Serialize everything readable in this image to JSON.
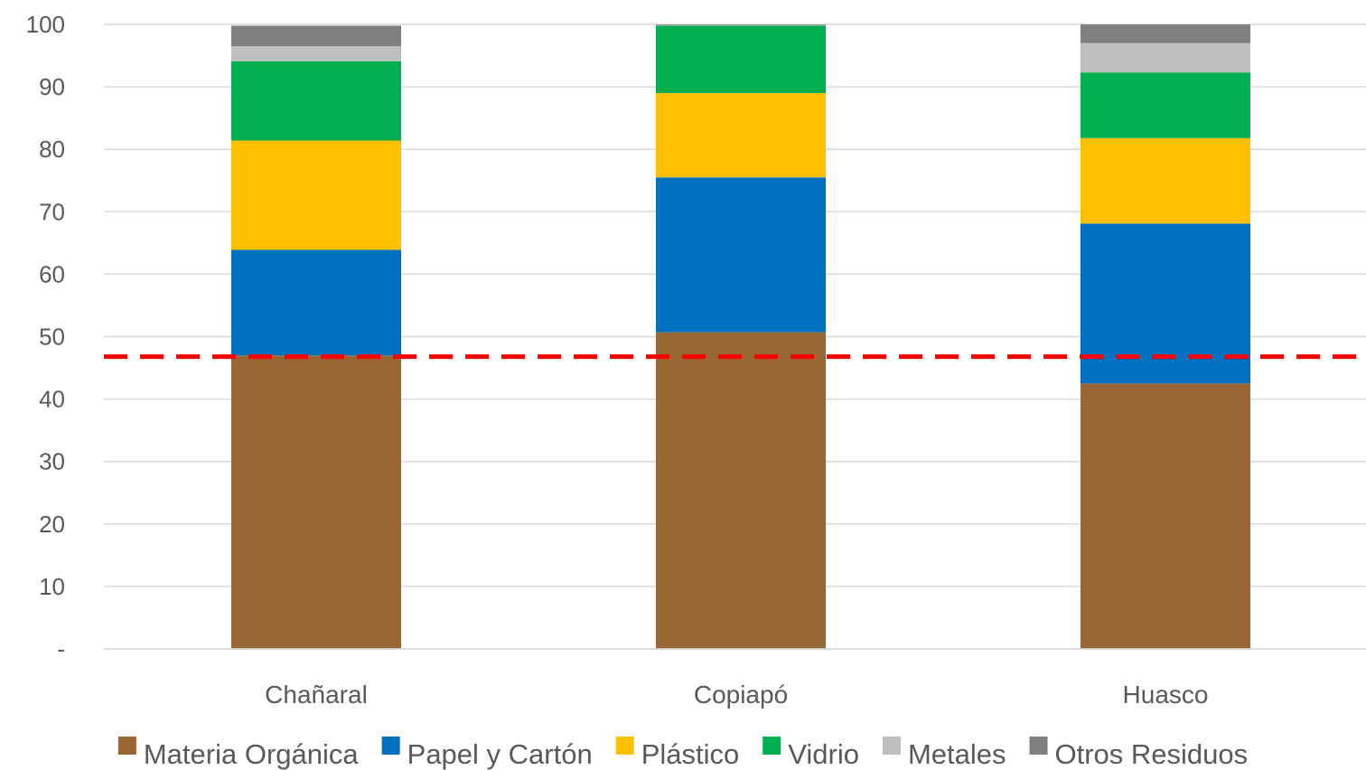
{
  "chart_data": {
    "type": "bar",
    "stacked": true,
    "title": "",
    "xlabel": "",
    "ylabel": "",
    "ylim": [
      0,
      100
    ],
    "yticks": [
      0,
      10,
      20,
      30,
      40,
      50,
      60,
      70,
      80,
      90,
      100
    ],
    "ytick_labels": [
      "-",
      "10",
      "20",
      "30",
      "40",
      "50",
      "60",
      "70",
      "80",
      "90",
      "100"
    ],
    "grid": true,
    "legend_position": "bottom",
    "categories": [
      "Chañaral",
      "Copiapó",
      "Huasco"
    ],
    "series": [
      {
        "name": "Materia Orgánica",
        "color": "#996633",
        "values": [
          47.0,
          50.7,
          42.5
        ]
      },
      {
        "name": "Papel y Cartón",
        "color": "#0070C0",
        "values": [
          16.9,
          24.8,
          25.6
        ]
      },
      {
        "name": "Plástico",
        "color": "#FFC000",
        "values": [
          17.5,
          13.5,
          13.7
        ]
      },
      {
        "name": "Vidrio",
        "color": "#00B050",
        "values": [
          12.7,
          10.8,
          10.5
        ]
      },
      {
        "name": "Metales",
        "color": "#BFBFBF",
        "values": [
          2.4,
          0.1,
          4.7
        ]
      },
      {
        "name": "Otros Residuos",
        "color": "#808080",
        "values": [
          3.3,
          0.1,
          3.0
        ]
      }
    ],
    "reference_line": {
      "value": 46.8,
      "color": "#FF0000",
      "style": "dashed"
    }
  }
}
